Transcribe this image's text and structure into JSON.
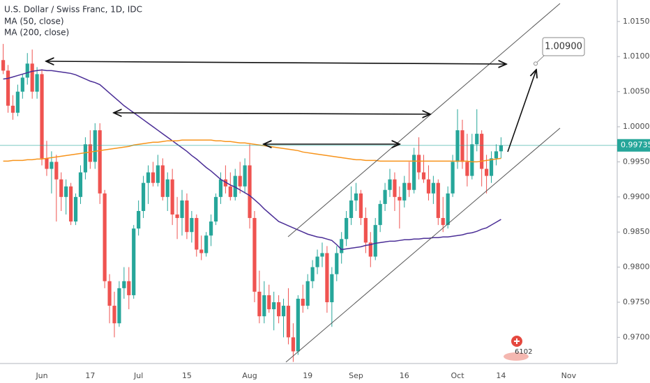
{
  "chart_data": {
    "type": "candlestick",
    "title": "U.S. Dollar / Swiss Franc, 1D, IDC",
    "categories": [
      null,
      null,
      null,
      null,
      null,
      null,
      null,
      null,
      "Jun",
      null,
      null,
      null,
      null,
      null,
      null,
      null,
      null,
      null,
      "17",
      null,
      null,
      null,
      null,
      null,
      null,
      null,
      null,
      null,
      "Jul",
      null,
      null,
      null,
      null,
      null,
      null,
      null,
      null,
      null,
      "15",
      null,
      null,
      null,
      null,
      null,
      null,
      null,
      null,
      null,
      null,
      null,
      null,
      "Aug",
      null,
      null,
      null,
      null,
      null,
      null,
      null,
      null,
      null,
      null,
      null,
      "19",
      null,
      null,
      null,
      null,
      null,
      null,
      null,
      null,
      null,
      "Sep",
      null,
      null,
      null,
      null,
      null,
      null,
      null,
      null,
      null,
      "16",
      null,
      null,
      null,
      null,
      null,
      null,
      null,
      null,
      null,
      null,
      "Oct",
      null,
      null,
      null,
      null,
      null,
      null,
      null,
      null,
      "14",
      null,
      null,
      null,
      null,
      null,
      null,
      null,
      null,
      null,
      null,
      null,
      null,
      null,
      "Nov"
    ],
    "open": [
      1.0095,
      1.008,
      1.003,
      1.002,
      1.005,
      1.007,
      1.009,
      1.005,
      1.0075,
      0.9955,
      0.994,
      0.995,
      0.9925,
      0.99,
      0.9915,
      0.9865,
      0.99,
      0.9935,
      0.9975,
      0.995,
      0.9995,
      0.9905,
      0.978,
      0.9745,
      0.972,
      0.977,
      0.978,
      0.976,
      0.9855,
      0.988,
      0.992,
      0.9935,
      0.992,
      0.9945,
      0.99,
      0.9925,
      0.9875,
      0.987,
      0.9895,
      0.985,
      0.987,
      0.9825,
      0.982,
      0.9845,
      0.9865,
      0.99,
      0.9925,
      0.9915,
      0.99,
      0.993,
      0.9915,
      0.9945,
      0.987,
      0.9765,
      0.973,
      0.976,
      0.974,
      0.975,
      0.973,
      0.9745,
      0.97,
      0.968,
      0.9755,
      0.9745,
      0.978,
      0.98,
      0.9815,
      0.982,
      0.975,
      0.979,
      0.982,
      0.984,
      0.987,
      0.9895,
      0.9905,
      0.987,
      0.9835,
      0.9815,
      0.986,
      0.989,
      0.991,
      0.9925,
      0.99,
      0.9895,
      0.992,
      0.991,
      0.996,
      0.9935,
      0.9925,
      0.9905,
      0.992,
      0.987,
      0.986,
      0.9905,
      0.995,
      0.9995,
      0.995,
      0.993,
      0.9975,
      0.999,
      0.994,
      0.993,
      0.9955,
      0.9965,
      null,
      null,
      null,
      null,
      null,
      null,
      null,
      null,
      null,
      null,
      null,
      null,
      null,
      null
    ],
    "high": [
      1.0118,
      1.0088,
      1.0045,
      1.006,
      1.0075,
      1.0105,
      1.011,
      1.0085,
      1.0082,
      0.998,
      0.9965,
      0.996,
      0.9935,
      0.9925,
      0.992,
      0.9905,
      0.9945,
      0.9985,
      0.9995,
      1.0005,
      1.0005,
      0.991,
      0.979,
      0.9765,
      0.978,
      0.98,
      0.98,
      0.986,
      0.9895,
      0.993,
      0.9945,
      0.995,
      0.996,
      0.9955,
      0.9935,
      0.994,
      0.99,
      0.991,
      0.9905,
      0.988,
      0.9875,
      0.9845,
      0.985,
      0.9875,
      0.9905,
      0.9935,
      0.9945,
      0.9935,
      0.994,
      0.995,
      0.9955,
      0.9975,
      0.988,
      0.9795,
      0.978,
      0.9775,
      0.9765,
      0.976,
      0.9755,
      0.977,
      0.972,
      0.976,
      0.9775,
      0.979,
      0.981,
      0.9825,
      0.9835,
      0.983,
      0.98,
      0.983,
      0.985,
      0.988,
      0.9915,
      0.992,
      0.991,
      0.9885,
      0.985,
      0.987,
      0.9895,
      0.992,
      0.994,
      0.9935,
      0.9915,
      0.993,
      0.995,
      0.997,
      0.9985,
      0.996,
      0.9945,
      0.993,
      0.9925,
      0.99,
      0.9915,
      0.996,
      1.0025,
      1.001,
      0.999,
      0.999,
      1.0025,
      0.9995,
      0.996,
      0.9965,
      0.9975,
      0.9985,
      null,
      null,
      null,
      null,
      null,
      null,
      null,
      null,
      null,
      null,
      null,
      null,
      null,
      null
    ],
    "low": [
      1.0075,
      1.002,
      1.001,
      1.0015,
      1.004,
      1.006,
      1.004,
      1.004,
      0.9945,
      0.993,
      0.9905,
      0.9865,
      0.988,
      0.9875,
      0.986,
      0.986,
      0.989,
      0.9925,
      0.994,
      0.994,
      0.989,
      0.977,
      0.972,
      0.97,
      0.9715,
      0.9755,
      0.974,
      0.9755,
      0.9845,
      0.987,
      0.989,
      0.9915,
      0.9915,
      0.9895,
      0.988,
      0.986,
      0.984,
      0.9845,
      0.984,
      0.9835,
      0.9815,
      0.981,
      0.9815,
      0.983,
      0.986,
      0.989,
      0.9905,
      0.9895,
      0.9895,
      0.9905,
      0.9905,
      0.9855,
      0.975,
      0.972,
      0.972,
      0.9735,
      0.971,
      0.972,
      0.97,
      0.969,
      0.9665,
      0.9675,
      0.9735,
      0.974,
      0.977,
      0.979,
      0.98,
      0.9735,
      0.9715,
      0.978,
      0.9805,
      0.983,
      0.986,
      0.988,
      0.986,
      0.982,
      0.98,
      0.981,
      0.985,
      0.988,
      0.99,
      0.988,
      0.9855,
      0.9885,
      0.99,
      0.9905,
      0.9925,
      0.992,
      0.9895,
      0.989,
      0.986,
      0.985,
      0.9855,
      0.99,
      0.994,
      0.994,
      0.9915,
      0.9925,
      0.9965,
      0.9915,
      0.9905,
      0.992,
      0.9945,
      0.9955,
      null,
      null,
      null,
      null,
      null,
      null,
      null,
      null,
      null,
      null,
      null,
      null,
      null,
      null
    ],
    "close": [
      1.008,
      1.003,
      1.002,
      1.005,
      1.007,
      1.009,
      1.005,
      1.0075,
      0.9955,
      0.994,
      0.995,
      0.9925,
      0.99,
      0.9915,
      0.9865,
      0.99,
      0.9935,
      0.9975,
      0.995,
      0.9995,
      0.9905,
      0.978,
      0.9745,
      0.972,
      0.977,
      0.978,
      0.976,
      0.9855,
      0.988,
      0.992,
      0.9935,
      0.992,
      0.9945,
      0.99,
      0.9925,
      0.9875,
      0.987,
      0.9895,
      0.985,
      0.987,
      0.9825,
      0.982,
      0.9845,
      0.9865,
      0.99,
      0.9925,
      0.9915,
      0.99,
      0.993,
      0.9915,
      0.9945,
      0.987,
      0.9765,
      0.973,
      0.976,
      0.974,
      0.975,
      0.973,
      0.9745,
      0.97,
      0.968,
      0.9755,
      0.9745,
      0.978,
      0.98,
      0.9815,
      0.982,
      0.975,
      0.979,
      0.982,
      0.984,
      0.987,
      0.9895,
      0.9905,
      0.987,
      0.9835,
      0.9815,
      0.986,
      0.989,
      0.991,
      0.9925,
      0.99,
      0.9895,
      0.992,
      0.991,
      0.996,
      0.9935,
      0.9925,
      0.9905,
      0.992,
      0.987,
      0.986,
      0.9905,
      0.995,
      0.9995,
      0.995,
      0.993,
      0.9975,
      0.999,
      0.994,
      0.993,
      0.9955,
      0.9965,
      0.99735,
      null,
      null,
      null,
      null,
      null,
      null,
      null,
      null,
      null,
      null,
      null,
      null,
      null,
      null
    ],
    "up_color": "#26a69a",
    "down_color": "#ef5350",
    "series": [
      {
        "name": "MA (50, close)",
        "color": "#4a2d96",
        "values": [
          1.0068,
          1.0069,
          1.0071,
          1.0073,
          1.0075,
          1.0077,
          1.0079,
          1.008,
          1.0081,
          1.008,
          1.008,
          1.0079,
          1.0078,
          1.0077,
          1.0076,
          1.0074,
          1.0071,
          1.0068,
          1.0065,
          1.0063,
          1.006,
          1.0054,
          1.0048,
          1.0042,
          1.0036,
          1.003,
          1.0025,
          1.002,
          1.0015,
          1.001,
          1.0005,
          1.0,
          0.9995,
          0.999,
          0.9985,
          0.998,
          0.9975,
          0.997,
          0.9965,
          0.9959,
          0.9954,
          0.9948,
          0.9942,
          0.9937,
          0.9931,
          0.9925,
          0.9921,
          0.9917,
          0.9914,
          0.991,
          0.9906,
          0.9902,
          0.9896,
          0.989,
          0.9883,
          0.9877,
          0.9871,
          0.9865,
          0.9862,
          0.9859,
          0.9856,
          0.9853,
          0.985,
          0.9847,
          0.9845,
          0.9843,
          0.9842,
          0.984,
          0.9838,
          0.9832,
          0.9825,
          0.9826,
          0.9827,
          0.9828,
          0.9829,
          0.9831,
          0.9832,
          0.9834,
          0.9835,
          0.9836,
          0.9837,
          0.9837,
          0.9838,
          0.9839,
          0.9839,
          0.984,
          0.984,
          0.9841,
          0.9841,
          0.9842,
          0.9842,
          0.9843,
          0.9843,
          0.9844,
          0.9845,
          0.9846,
          0.9848,
          0.9849,
          0.9851,
          0.9854,
          0.9856,
          0.986,
          0.9864,
          0.9868,
          null,
          null,
          null,
          null,
          null,
          null,
          null,
          null,
          null,
          null,
          null,
          null,
          null,
          null
        ]
      },
      {
        "name": "MA (200, close)",
        "color": "#f7931a",
        "values": [
          0.9951,
          0.9951,
          0.9952,
          0.9952,
          0.9952,
          0.9953,
          0.9953,
          0.9954,
          0.9954,
          0.9955,
          0.9956,
          0.9957,
          0.9958,
          0.9959,
          0.996,
          0.9961,
          0.9962,
          0.9963,
          0.9964,
          0.9965,
          0.9966,
          0.9967,
          0.9968,
          0.9969,
          0.997,
          0.9971,
          0.9972,
          0.9974,
          0.9975,
          0.9976,
          0.9977,
          0.9978,
          0.9978,
          0.9979,
          0.998,
          0.998,
          0.998,
          0.9981,
          0.9981,
          0.9981,
          0.9981,
          0.9981,
          0.9981,
          0.9981,
          0.998,
          0.998,
          0.9979,
          0.9979,
          0.9978,
          0.9977,
          0.9977,
          0.9976,
          0.9975,
          0.9974,
          0.9973,
          0.9972,
          0.9971,
          0.997,
          0.9969,
          0.9968,
          0.9967,
          0.9966,
          0.9964,
          0.9963,
          0.9962,
          0.9961,
          0.996,
          0.9959,
          0.9958,
          0.9957,
          0.9956,
          0.9955,
          0.9954,
          0.9953,
          0.9953,
          0.9952,
          0.9952,
          0.9952,
          0.9951,
          0.9951,
          0.9951,
          0.9951,
          0.9951,
          0.9951,
          0.9951,
          0.9951,
          0.9951,
          0.9951,
          0.9951,
          0.9951,
          0.9951,
          0.9951,
          0.9951,
          0.9951,
          0.9951,
          0.9951,
          0.9951,
          0.995,
          0.995,
          0.9951,
          0.9952,
          0.9953,
          0.9954,
          0.9955,
          null,
          null,
          null,
          null,
          null,
          null,
          null,
          null,
          null,
          null,
          null,
          null,
          null,
          null
        ]
      }
    ],
    "ylim": [
      0.96627,
      1.01806
    ],
    "yticks": [
      {
        "value": 0.97,
        "label": "0.97000"
      },
      {
        "value": 0.975,
        "label": "0.97500"
      },
      {
        "value": 0.98,
        "label": "0.98000"
      },
      {
        "value": 0.985,
        "label": "0.98500"
      },
      {
        "value": 0.99,
        "label": "0.99000"
      },
      {
        "value": 0.995,
        "label": "0.99500"
      },
      {
        "value": 1.0,
        "label": "1.00000"
      },
      {
        "value": 1.005,
        "label": "1.00500"
      },
      {
        "value": 1.01,
        "label": "1.01000"
      },
      {
        "value": 1.015,
        "label": "1.01500"
      }
    ],
    "grid": false,
    "target": {
      "value": 1.009,
      "label": "1.00900"
    }
  },
  "ui": {
    "badge": 6102
  }
}
